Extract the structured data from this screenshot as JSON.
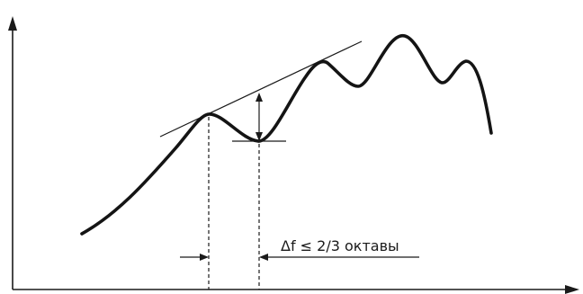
{
  "annotation": {
    "interval_label": "Δf ≤ 2/3 октавы"
  },
  "colors": {
    "ink": "#1a1a1a",
    "background": "#ffffff"
  }
}
